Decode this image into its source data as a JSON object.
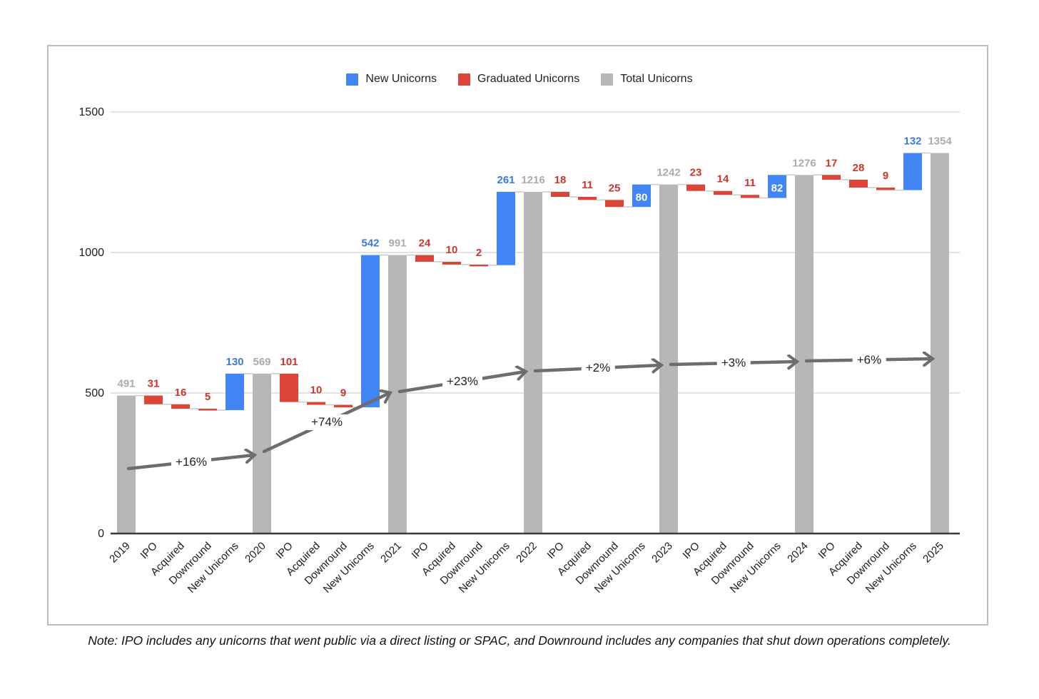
{
  "note": "Note: IPO includes any unicorns that went public via a direct listing or SPAC, and Downround includes any companies that shut down operations completely.",
  "chart_data": {
    "type": "bar",
    "subtype": "waterfall",
    "title": "",
    "legend": [
      {
        "label": "New Unicorns",
        "color": "#4285F4"
      },
      {
        "label": "Graduated Unicorns",
        "color": "#DB4437"
      },
      {
        "label": "Total Unicorns",
        "color": "#B7B7B7"
      }
    ],
    "y_axis": {
      "ticks": [
        0,
        500,
        1000,
        1500
      ],
      "min": 0,
      "max": 1500,
      "gridlines": true
    },
    "x_axis": {
      "label_rotation_deg": -45
    },
    "bars": [
      {
        "label": "2019",
        "type": "total",
        "value": 491
      },
      {
        "label": "IPO",
        "type": "decrease",
        "value": 31
      },
      {
        "label": "Acquired",
        "type": "decrease",
        "value": 16
      },
      {
        "label": "Downround",
        "type": "decrease",
        "value": 5
      },
      {
        "label": "New Unicorns",
        "type": "increase",
        "value": 130
      },
      {
        "label": "2020",
        "type": "total",
        "value": 569
      },
      {
        "label": "IPO",
        "type": "decrease",
        "value": 101
      },
      {
        "label": "Acquired",
        "type": "decrease",
        "value": 10
      },
      {
        "label": "Downround",
        "type": "decrease",
        "value": 9
      },
      {
        "label": "New Unicorns",
        "type": "increase",
        "value": 542
      },
      {
        "label": "2021",
        "type": "total",
        "value": 991
      },
      {
        "label": "IPO",
        "type": "decrease",
        "value": 24
      },
      {
        "label": "Acquired",
        "type": "decrease",
        "value": 10
      },
      {
        "label": "Downround",
        "type": "decrease",
        "value": 2
      },
      {
        "label": "New Unicorns",
        "type": "increase",
        "value": 261
      },
      {
        "label": "2022",
        "type": "total",
        "value": 1216
      },
      {
        "label": "IPO",
        "type": "decrease",
        "value": 18
      },
      {
        "label": "Acquired",
        "type": "decrease",
        "value": 11
      },
      {
        "label": "Downround",
        "type": "decrease",
        "value": 25
      },
      {
        "label": "New Unicorns",
        "type": "increase",
        "value": 80,
        "label_inside": true
      },
      {
        "label": "2023",
        "type": "total",
        "value": 1242
      },
      {
        "label": "IPO",
        "type": "decrease",
        "value": 23
      },
      {
        "label": "Acquired",
        "type": "decrease",
        "value": 14
      },
      {
        "label": "Downround",
        "type": "decrease",
        "value": 11
      },
      {
        "label": "New Unicorns",
        "type": "increase",
        "value": 82,
        "label_inside": true
      },
      {
        "label": "2024",
        "type": "total",
        "value": 1276
      },
      {
        "label": "IPO",
        "type": "decrease",
        "value": 17
      },
      {
        "label": "Acquired",
        "type": "decrease",
        "value": 28
      },
      {
        "label": "Downround",
        "type": "decrease",
        "value": 9
      },
      {
        "label": "New Unicorns",
        "type": "increase",
        "value": 132
      },
      {
        "label": "2025",
        "type": "total",
        "value": 1354
      }
    ],
    "growth_arrows": [
      {
        "label": "+16%",
        "from": "2019",
        "to": "2020"
      },
      {
        "label": "+74%",
        "from": "2020",
        "to": "2021"
      },
      {
        "label": "+23%",
        "from": "2021",
        "to": "2022"
      },
      {
        "label": "+2%",
        "from": "2022",
        "to": "2023"
      },
      {
        "label": "+3%",
        "from": "2023",
        "to": "2024"
      },
      {
        "label": "+6%",
        "from": "2024",
        "to": "2025"
      }
    ],
    "colors": {
      "increase": "#4285F4",
      "decrease": "#DB4437",
      "total": "#B7B7B7",
      "increase_label": "#3C78D8",
      "decrease_label": "#CC342B",
      "total_label": "#ABABAB",
      "inside_label": "#FFFFFF",
      "arrow": "#6D6D6D",
      "connector": "#C9C9C9",
      "gridline": "#E3E3E3",
      "axis_line": "#3A3A3A"
    }
  }
}
